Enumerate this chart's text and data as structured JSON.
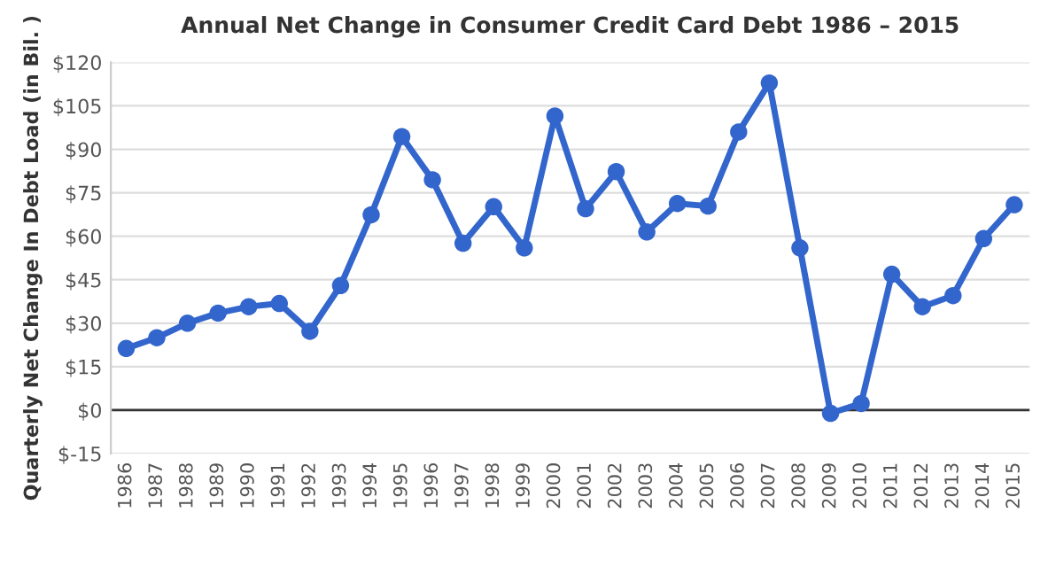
{
  "chart_data": {
    "type": "line",
    "title": "Annual Net Change in Consumer Credit Card Debt 1986 – 2015",
    "ylabel": "Quarterly Net Change In Debt Load (in Bil. )",
    "categories": [
      "1986",
      "1987",
      "1988",
      "1989",
      "1990",
      "1991",
      "1992",
      "1993",
      "1994",
      "1995",
      "1996",
      "1997",
      "1998",
      "1999",
      "2000",
      "2001",
      "2002",
      "2003",
      "2004",
      "2005",
      "2006",
      "2007",
      "2008",
      "2009",
      "2010",
      "2011",
      "2012",
      "2013",
      "2014",
      "2015"
    ],
    "series": [
      {
        "color": "#3366cc",
        "values": [
          21.3,
          25,
          30,
          33.5,
          35.7,
          36.8,
          27.2,
          43,
          67.4,
          94.4,
          79.5,
          57.6,
          70.2,
          56,
          101.5,
          69.5,
          82.3,
          61.5,
          71.3,
          70.4,
          96,
          112.9,
          56,
          -1.1,
          2.3,
          46.9,
          35.7,
          39.5,
          59.2,
          70.9
        ]
      }
    ],
    "ylim": [
      -15,
      120
    ],
    "yticks": [
      {
        "value": -15,
        "label": "$-15"
      },
      {
        "value": 0,
        "label": "$0"
      },
      {
        "value": 15,
        "label": "$15"
      },
      {
        "value": 30,
        "label": "$30"
      },
      {
        "value": 45,
        "label": "$45"
      },
      {
        "value": 60,
        "label": "$60"
      },
      {
        "value": 75,
        "label": "$75"
      },
      {
        "value": 90,
        "label": "$90"
      },
      {
        "value": 105,
        "label": "$105"
      },
      {
        "value": 120,
        "label": "$120"
      }
    ],
    "ref_lines": [
      {
        "axis": "y",
        "value": 0,
        "color": "#333333"
      }
    ],
    "grid": "y",
    "marker": "circle",
    "line_style": "solid"
  }
}
